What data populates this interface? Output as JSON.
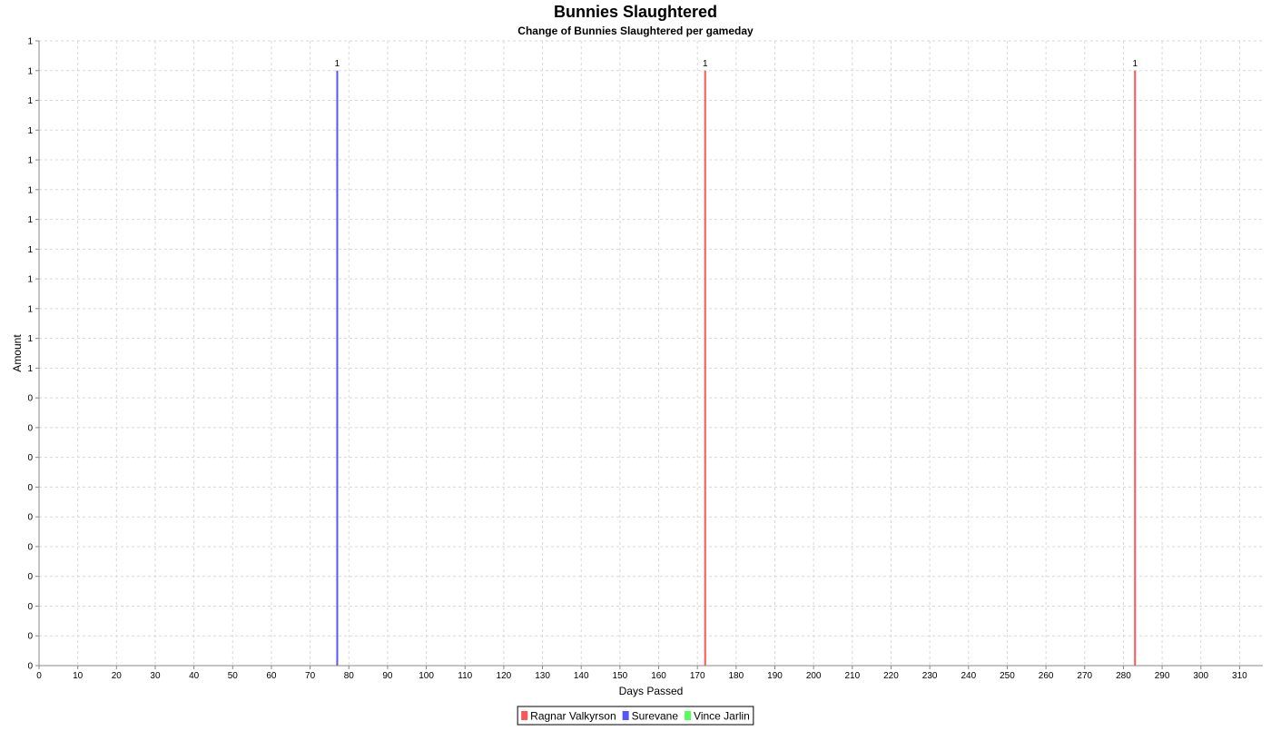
{
  "chart_data": {
    "type": "bar",
    "title": "Bunnies Slaughtered",
    "subtitle": "Change of Bunnies Slaughtered per gameday",
    "xlabel": "Days Passed",
    "ylabel": "Amount",
    "xlim": [
      0,
      316
    ],
    "ylim": [
      0,
      1.05
    ],
    "x_ticks": [
      0,
      10,
      20,
      30,
      40,
      50,
      60,
      70,
      80,
      90,
      100,
      110,
      120,
      130,
      140,
      150,
      160,
      170,
      180,
      190,
      200,
      210,
      220,
      230,
      240,
      250,
      260,
      270,
      280,
      290,
      300,
      310
    ],
    "y_ticks": [
      0,
      0.05,
      0.1,
      0.15,
      0.2,
      0.25,
      0.3,
      0.35,
      0.4,
      0.45,
      0.5,
      0.55,
      0.6,
      0.65,
      0.7,
      0.75,
      0.8,
      0.85,
      0.9,
      0.95,
      1.0,
      1.05
    ],
    "y_tick_labels": [
      "0",
      "0",
      "0",
      "0",
      "0",
      "0",
      "0",
      "0",
      "0",
      "0",
      "1",
      "1",
      "1",
      "1",
      "1",
      "1",
      "1",
      "1",
      "1",
      "1",
      "1",
      "1"
    ],
    "grid": true,
    "legend_position": "bottom",
    "series": [
      {
        "name": "Ragnar Valkyrson",
        "color": "#ff5555",
        "points": [
          {
            "x": 172,
            "y": 1,
            "label": "1"
          },
          {
            "x": 283,
            "y": 1,
            "label": "1"
          }
        ]
      },
      {
        "name": "Surevane",
        "color": "#5555ff",
        "points": [
          {
            "x": 77,
            "y": 1,
            "label": "1"
          }
        ]
      },
      {
        "name": "Vince Jarlin",
        "color": "#55ff55",
        "points": []
      }
    ]
  }
}
